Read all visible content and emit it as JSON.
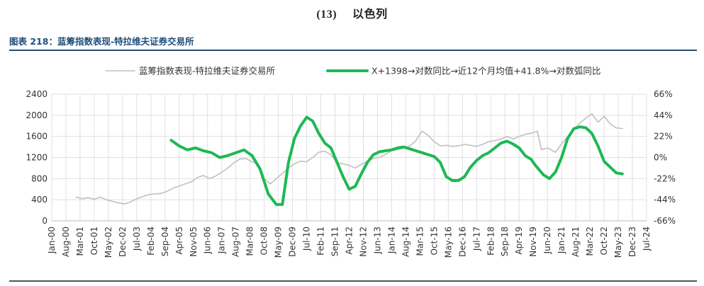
{
  "section": {
    "number": "(13)",
    "name": "以色列"
  },
  "figure": {
    "title": "图表 218：蓝筹指数表现-特拉维夫证券交易所"
  },
  "colors": {
    "title_blue": "#1f4e79",
    "series_gray": "#c0c0c0",
    "series_green": "#1db954",
    "grid": "#e0e0e0"
  },
  "chart_data": {
    "type": "line",
    "legend_position": "top",
    "grid": true,
    "x_ticks": [
      "Jan-00",
      "Aug-00",
      "Mar-01",
      "Oct-01",
      "May-02",
      "Dec-02",
      "Jul-03",
      "Feb-04",
      "Sep-04",
      "Apr-05",
      "Nov-05",
      "Jun-06",
      "Jan-07",
      "Aug-07",
      "Mar-08",
      "Oct-08",
      "May-09",
      "Dec-09",
      "Jul-10",
      "Feb-11",
      "Sep-11",
      "Apr-12",
      "Nov-12",
      "Jun-13",
      "Jan-14",
      "Aug-14",
      "Mar-15",
      "Oct-15",
      "May-16",
      "Dec-16",
      "Jul-17",
      "Feb-18",
      "Sep-18",
      "Apr-19",
      "Nov-19",
      "Jun-20",
      "Jan-21",
      "Aug-21",
      "Mar-22",
      "Oct-22",
      "May-23",
      "Dec-23",
      "Jul-24"
    ],
    "y_left": {
      "ticks": [
        "0",
        "400",
        "800",
        "1200",
        "1600",
        "2000",
        "2400"
      ],
      "min": 0,
      "max": 2400
    },
    "y_right": {
      "ticks": [
        "-66%",
        "-44%",
        "-22%",
        "0%",
        "22%",
        "44%",
        "66%"
      ],
      "min": -66,
      "max": 66
    },
    "series": [
      {
        "name": "蓝筹指数表现-特拉维夫证券交易所",
        "axis": "left",
        "points": [
          [
            "2001-01",
            450
          ],
          [
            "2001-04",
            420
          ],
          [
            "2001-07",
            440
          ],
          [
            "2001-10",
            410
          ],
          [
            "2002-01",
            450
          ],
          [
            "2002-04",
            400
          ],
          [
            "2002-07",
            370
          ],
          [
            "2002-10",
            340
          ],
          [
            "2003-01",
            320
          ],
          [
            "2003-04",
            360
          ],
          [
            "2003-07",
            420
          ],
          [
            "2003-10",
            460
          ],
          [
            "2004-01",
            500
          ],
          [
            "2004-04",
            510
          ],
          [
            "2004-07",
            520
          ],
          [
            "2004-10",
            560
          ],
          [
            "2005-01",
            620
          ],
          [
            "2005-04",
            660
          ],
          [
            "2005-07",
            700
          ],
          [
            "2005-10",
            740
          ],
          [
            "2006-01",
            820
          ],
          [
            "2006-04",
            860
          ],
          [
            "2006-07",
            800
          ],
          [
            "2006-10",
            850
          ],
          [
            "2007-01",
            920
          ],
          [
            "2007-04",
            1000
          ],
          [
            "2007-07",
            1100
          ],
          [
            "2007-10",
            1170
          ],
          [
            "2008-01",
            1180
          ],
          [
            "2008-04",
            1120
          ],
          [
            "2008-07",
            1080
          ],
          [
            "2008-10",
            800
          ],
          [
            "2009-01",
            700
          ],
          [
            "2009-04",
            800
          ],
          [
            "2009-07",
            900
          ],
          [
            "2009-10",
            1000
          ],
          [
            "2010-01",
            1080
          ],
          [
            "2010-04",
            1130
          ],
          [
            "2010-07",
            1120
          ],
          [
            "2010-10",
            1200
          ],
          [
            "2011-01",
            1300
          ],
          [
            "2011-04",
            1320
          ],
          [
            "2011-07",
            1250
          ],
          [
            "2011-10",
            1100
          ],
          [
            "2012-01",
            1080
          ],
          [
            "2012-04",
            1050
          ],
          [
            "2012-07",
            1000
          ],
          [
            "2012-10",
            1070
          ],
          [
            "2013-01",
            1130
          ],
          [
            "2013-04",
            1180
          ],
          [
            "2013-07",
            1200
          ],
          [
            "2013-10",
            1260
          ],
          [
            "2014-01",
            1330
          ],
          [
            "2014-04",
            1350
          ],
          [
            "2014-07",
            1380
          ],
          [
            "2014-10",
            1420
          ],
          [
            "2015-01",
            1520
          ],
          [
            "2015-04",
            1700
          ],
          [
            "2015-07",
            1620
          ],
          [
            "2015-10",
            1500
          ],
          [
            "2016-01",
            1420
          ],
          [
            "2016-04",
            1430
          ],
          [
            "2016-07",
            1410
          ],
          [
            "2016-10",
            1420
          ],
          [
            "2017-01",
            1450
          ],
          [
            "2017-04",
            1430
          ],
          [
            "2017-07",
            1410
          ],
          [
            "2017-10",
            1450
          ],
          [
            "2018-01",
            1500
          ],
          [
            "2018-04",
            1520
          ],
          [
            "2018-07",
            1550
          ],
          [
            "2018-10",
            1600
          ],
          [
            "2019-01",
            1550
          ],
          [
            "2019-04",
            1600
          ],
          [
            "2019-07",
            1640
          ],
          [
            "2019-10",
            1660
          ],
          [
            "2020-01",
            1700
          ],
          [
            "2020-03",
            1350
          ],
          [
            "2020-06",
            1380
          ],
          [
            "2020-10",
            1300
          ],
          [
            "2021-01",
            1460
          ],
          [
            "2021-04",
            1600
          ],
          [
            "2021-07",
            1720
          ],
          [
            "2021-10",
            1850
          ],
          [
            "2022-01",
            1950
          ],
          [
            "2022-04",
            2030
          ],
          [
            "2022-07",
            1870
          ],
          [
            "2022-10",
            1980
          ],
          [
            "2023-01",
            1840
          ],
          [
            "2023-04",
            1760
          ],
          [
            "2023-07",
            1750
          ]
        ]
      },
      {
        "name": "X+1398→对数同比→近12个月均值+41.8%→对数弧同比",
        "axis": "right",
        "points": [
          [
            "2004-12",
            18
          ],
          [
            "2005-04",
            12
          ],
          [
            "2005-08",
            8
          ],
          [
            "2005-12",
            10
          ],
          [
            "2006-04",
            7
          ],
          [
            "2006-08",
            5
          ],
          [
            "2006-12",
            0
          ],
          [
            "2007-04",
            2
          ],
          [
            "2007-08",
            5
          ],
          [
            "2007-12",
            8
          ],
          [
            "2008-04",
            2
          ],
          [
            "2008-08",
            -12
          ],
          [
            "2008-12",
            -38
          ],
          [
            "2009-04",
            -49
          ],
          [
            "2009-07",
            -49
          ],
          [
            "2009-10",
            -5
          ],
          [
            "2010-01",
            20
          ],
          [
            "2010-04",
            33
          ],
          [
            "2010-07",
            42
          ],
          [
            "2010-10",
            38
          ],
          [
            "2011-01",
            25
          ],
          [
            "2011-04",
            15
          ],
          [
            "2011-07",
            10
          ],
          [
            "2011-10",
            -5
          ],
          [
            "2012-01",
            -20
          ],
          [
            "2012-04",
            -33
          ],
          [
            "2012-07",
            -30
          ],
          [
            "2012-10",
            -17
          ],
          [
            "2013-01",
            -5
          ],
          [
            "2013-04",
            3
          ],
          [
            "2013-07",
            6
          ],
          [
            "2013-10",
            7
          ],
          [
            "2014-01",
            8
          ],
          [
            "2014-04",
            10
          ],
          [
            "2014-07",
            11
          ],
          [
            "2014-10",
            9
          ],
          [
            "2015-01",
            7
          ],
          [
            "2015-04",
            5
          ],
          [
            "2015-07",
            3
          ],
          [
            "2015-10",
            1
          ],
          [
            "2016-01",
            -5
          ],
          [
            "2016-04",
            -20
          ],
          [
            "2016-07",
            -24
          ],
          [
            "2016-10",
            -24
          ],
          [
            "2017-01",
            -20
          ],
          [
            "2017-04",
            -10
          ],
          [
            "2017-07",
            -3
          ],
          [
            "2017-10",
            2
          ],
          [
            "2018-01",
            5
          ],
          [
            "2018-04",
            10
          ],
          [
            "2018-07",
            15
          ],
          [
            "2018-10",
            17
          ],
          [
            "2019-01",
            14
          ],
          [
            "2019-04",
            10
          ],
          [
            "2019-07",
            2
          ],
          [
            "2019-10",
            -2
          ],
          [
            "2019-12",
            -8
          ],
          [
            "2020-04",
            -18
          ],
          [
            "2020-07",
            -22
          ],
          [
            "2020-10",
            -15
          ],
          [
            "2021-01",
            0
          ],
          [
            "2021-04",
            20
          ],
          [
            "2021-07",
            30
          ],
          [
            "2021-10",
            32
          ],
          [
            "2022-01",
            31
          ],
          [
            "2022-04",
            25
          ],
          [
            "2022-07",
            12
          ],
          [
            "2022-10",
            -4
          ],
          [
            "2023-01",
            -10
          ],
          [
            "2023-04",
            -16
          ],
          [
            "2023-07",
            -17
          ]
        ]
      }
    ]
  }
}
